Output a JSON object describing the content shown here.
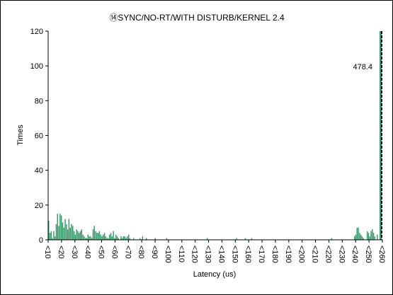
{
  "chart_data": {
    "type": "bar",
    "title": "⑭SYNC/NO-RT/WITH DISTURB/KERNEL 2.4",
    "xlabel": "Latency (us)",
    "ylabel": "Times",
    "ylim": [
      0,
      120
    ],
    "yticks": [
      0,
      20,
      40,
      60,
      80,
      100,
      120
    ],
    "grid": false,
    "x_start": 10,
    "x_end": 260,
    "xtick_labels": [
      "<10",
      "<20",
      "<30",
      "<40",
      "<50",
      "<60",
      "<70",
      "<80",
      "<90",
      "<100",
      "<110",
      "<120",
      "<130",
      "<140",
      "<150",
      "<160",
      "<170",
      "<180",
      "<190",
      "<200",
      "<210",
      "<220",
      "<230",
      "<240",
      "<250",
      "<260"
    ],
    "bar_color": "#339966",
    "values": [
      11,
      4,
      5,
      1,
      5,
      2,
      9,
      15,
      8,
      15,
      14,
      10,
      7,
      12,
      9,
      6,
      12,
      7,
      9,
      8,
      5,
      3,
      6,
      5,
      4,
      5,
      6,
      3,
      2,
      1,
      1,
      3,
      2,
      2,
      1,
      6,
      8,
      5,
      4,
      4,
      5,
      3,
      2,
      3,
      4,
      2,
      1,
      1,
      3,
      4,
      2,
      5,
      1,
      3,
      2,
      1,
      0,
      2,
      1,
      2,
      2,
      1,
      2,
      3,
      1,
      0,
      0,
      1,
      0,
      0,
      0,
      0,
      1,
      0,
      2,
      0,
      0,
      1,
      0,
      0,
      0,
      0,
      0,
      0,
      1,
      0,
      0,
      0,
      0,
      0,
      0,
      0,
      0,
      1,
      0,
      0,
      0,
      0,
      0,
      0,
      0,
      0,
      0,
      0,
      0,
      0,
      0,
      0,
      0,
      0,
      0,
      0,
      0,
      0,
      0,
      0,
      0,
      0,
      0,
      0,
      0,
      0,
      0,
      0,
      0,
      1,
      0,
      0,
      0,
      0,
      0,
      0,
      0,
      0,
      0,
      0,
      0,
      0,
      0,
      0,
      0,
      0,
      0,
      0,
      0,
      0,
      0,
      0,
      1,
      0,
      0,
      0,
      0,
      0,
      0,
      1,
      0,
      0,
      0,
      0,
      1,
      0,
      0,
      0,
      0,
      0,
      0,
      0,
      0,
      0,
      0,
      0,
      0,
      0,
      0,
      0,
      0,
      0,
      0,
      0,
      0,
      0,
      0,
      0,
      0,
      0,
      0,
      0,
      0,
      0,
      0,
      0,
      0,
      0,
      0,
      0,
      0,
      0,
      0,
      0,
      0,
      0,
      0,
      0,
      0,
      0,
      0,
      0,
      0,
      0,
      0,
      0,
      0,
      0,
      0,
      0,
      0,
      0,
      0,
      0,
      0,
      0,
      0,
      1,
      0,
      0,
      0,
      0,
      0,
      0,
      0,
      0,
      0,
      0,
      0,
      0,
      0,
      0,
      0,
      0,
      0,
      2,
      3,
      7,
      7,
      4,
      3,
      2,
      1,
      0,
      0,
      5,
      4,
      2,
      5,
      6,
      4,
      2,
      0,
      3
    ],
    "overflow_bar": {
      "label": "<260",
      "value": 478.4,
      "annotation": "478.4"
    }
  }
}
